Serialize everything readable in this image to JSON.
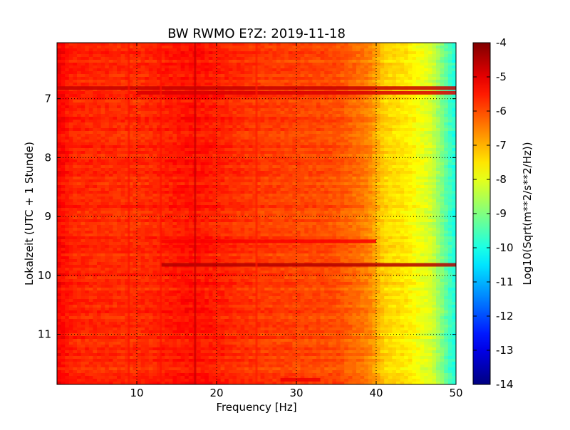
{
  "chart_data": {
    "type": "heatmap",
    "title": "BW RWMO E?Z: 2019-11-18",
    "xlabel": "Frequency [Hz]",
    "ylabel": "Lokalzeit (UTC + 1 Stunde)",
    "xlim": [
      0,
      50
    ],
    "ylim": [
      6.05,
      11.85
    ],
    "y_inverted": true,
    "x_ticks": [
      "10",
      "20",
      "30",
      "40",
      "50"
    ],
    "y_ticks": [
      "7",
      "8",
      "9",
      "10",
      "11"
    ],
    "grid": true,
    "grid_style": "dotted",
    "colormap": "jet",
    "colorbar": {
      "label": "Log10(Sqrt(m**2/s**2/Hz))",
      "range": [
        -14,
        -4
      ],
      "ticks": [
        "-4",
        "-5",
        "-6",
        "-7",
        "-8",
        "-9",
        "-10",
        "-11",
        "-12",
        "-13",
        "-14"
      ]
    },
    "spectrum_profile": [
      {
        "frequency": 0,
        "level": -5.2
      },
      {
        "frequency": 2,
        "level": -5.6
      },
      {
        "frequency": 10,
        "level": -5.7
      },
      {
        "frequency": 17,
        "level": -5.4
      },
      {
        "frequency": 25,
        "level": -5.8
      },
      {
        "frequency": 35,
        "level": -6.0
      },
      {
        "frequency": 39,
        "level": -6.5
      },
      {
        "frequency": 41,
        "level": -7.3
      },
      {
        "frequency": 44,
        "level": -7.6
      },
      {
        "frequency": 47,
        "level": -8.2
      },
      {
        "frequency": 49,
        "level": -9.5
      },
      {
        "frequency": 50,
        "level": -10.0
      }
    ],
    "features": [
      {
        "kind": "band",
        "time": 6.82,
        "f_from": 0,
        "f_to": 50,
        "level": -4.7
      },
      {
        "kind": "band",
        "time": 6.9,
        "f_from": 10,
        "f_to": 50,
        "level": -4.9
      },
      {
        "kind": "band",
        "time": 9.42,
        "f_from": 13,
        "f_to": 40,
        "level": -5.2
      },
      {
        "kind": "band",
        "time": 9.82,
        "f_from": 13,
        "f_to": 50,
        "level": -4.5
      },
      {
        "kind": "band",
        "time": 11.77,
        "f_from": 28,
        "f_to": 33,
        "level": -5.1
      },
      {
        "kind": "line",
        "frequency": 17.3,
        "level": -4.7
      },
      {
        "kind": "line",
        "frequency": 9.0,
        "level": -5.4
      },
      {
        "kind": "line",
        "frequency": 13.0,
        "level": -5.4
      },
      {
        "kind": "line",
        "frequency": 25.0,
        "level": -5.5
      }
    ]
  }
}
